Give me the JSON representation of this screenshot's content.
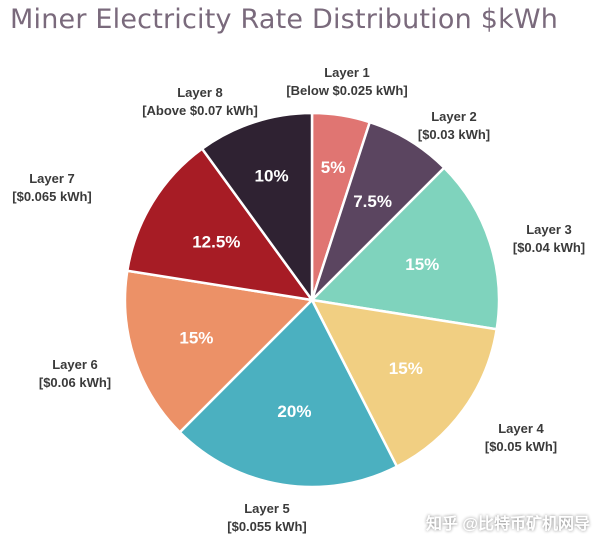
{
  "chart_data": {
    "type": "pie",
    "title": "Miner Electricity Rate Distribution $kWh",
    "slices": [
      {
        "name": "Layer 1",
        "range": "[Below $0.025 kWh]",
        "value": 5,
        "label": "5%",
        "color": "#e07572"
      },
      {
        "name": "Layer 2",
        "range": "[$0.03 kWh]",
        "value": 7.5,
        "label": "7.5%",
        "color": "#5b4560"
      },
      {
        "name": "Layer 3",
        "range": "[$0.04 kWh]",
        "value": 15,
        "label": "15%",
        "color": "#7fd3bd"
      },
      {
        "name": "Layer 4",
        "range": "[$0.05 kWh]",
        "value": 15,
        "label": "15%",
        "color": "#f1cf82"
      },
      {
        "name": "Layer 5",
        "range": "[$0.055 kWh]",
        "value": 20,
        "label": "20%",
        "color": "#4bb0c0"
      },
      {
        "name": "Layer 6",
        "range": "[$0.06 kWh]",
        "value": 15,
        "label": "15%",
        "color": "#ec9167"
      },
      {
        "name": "Layer 7",
        "range": "[$0.065 kWh]",
        "value": 12.5,
        "label": "12.5%",
        "color": "#a71c25"
      },
      {
        "name": "Layer 8",
        "range": "[Above $0.07 kWh]",
        "value": 10,
        "label": "10%",
        "color": "#2f2232"
      }
    ],
    "start_angle": "12 o'clock",
    "direction": "clockwise"
  },
  "watermark": "知乎 @比特币矿机网导"
}
